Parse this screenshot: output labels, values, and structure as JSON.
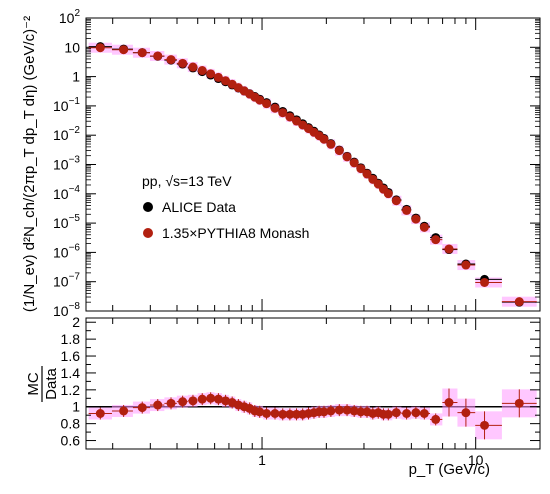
{
  "chart_data": [
    {
      "type": "scatter",
      "scale": {
        "x": "log",
        "y": "log"
      },
      "xlim": [
        0.15,
        20
      ],
      "ylim": [
        1e-08,
        100
      ],
      "ylabel": "(1/N_ev) d²N_ch/(2πp_T dp_T dη) (GeV/c)⁻²",
      "yticks": [
        "10⁻⁸",
        "10⁻⁷",
        "10⁻⁶",
        "10⁻⁵",
        "10⁻⁴",
        "10⁻³",
        "10⁻²",
        "10⁻¹",
        "1",
        "10",
        "10²"
      ],
      "annotation": "pp, √s=13 TeV",
      "legend": [
        {
          "label": "ALICE Data",
          "color": "#000000"
        },
        {
          "label": "1.35×PYTHIA8 Monash",
          "color": "#b22010"
        }
      ],
      "error_band_color": "#ff99ff",
      "x": [
        0.175,
        0.225,
        0.275,
        0.325,
        0.375,
        0.425,
        0.475,
        0.525,
        0.575,
        0.625,
        0.675,
        0.725,
        0.775,
        0.825,
        0.875,
        0.925,
        0.975,
        1.05,
        1.15,
        1.25,
        1.35,
        1.45,
        1.55,
        1.65,
        1.75,
        1.85,
        1.95,
        2.1,
        2.3,
        2.5,
        2.7,
        2.9,
        3.1,
        3.3,
        3.5,
        3.7,
        3.9,
        4.25,
        4.75,
        5.25,
        5.75,
        6.5,
        7.5,
        9.0,
        11.0,
        16.0
      ],
      "series": [
        {
          "name": "ALICE Data",
          "values": [
            10.5,
            8.7,
            6.6,
            4.95,
            3.65,
            2.68,
            1.98,
            1.48,
            1.13,
            0.86,
            0.67,
            0.52,
            0.41,
            0.325,
            0.259,
            0.209,
            0.169,
            0.129,
            0.0906,
            0.0642,
            0.046,
            0.0334,
            0.0245,
            0.0182,
            0.0136,
            0.0102,
            0.00775,
            0.00515,
            0.0031,
            0.0019,
            0.0012,
            0.00077,
            0.000505,
            0.000338,
            0.00023,
            0.000158,
            0.000111,
            6.2e-05,
            2.95e-05,
            1.48e-05,
            7.8e-06,
            3.2e-06,
            1.25e-06,
            4e-07,
            1.2e-07,
            2e-08
          ]
        },
        {
          "name": "1.35×PYTHIA8 Monash",
          "values": [
            9.66,
            8.27,
            6.53,
            5.05,
            3.8,
            2.84,
            2.12,
            1.61,
            1.24,
            0.94,
            0.72,
            0.55,
            0.42,
            0.325,
            0.254,
            0.199,
            0.158,
            0.119,
            0.0833,
            0.0584,
            0.0419,
            0.0304,
            0.0223,
            0.0168,
            0.0126,
            0.0096,
            0.0073,
            0.00489,
            0.00298,
            0.00182,
            0.00114,
            0.000724,
            0.000475,
            0.000311,
            0.000214,
            0.000144,
            0.000101,
            5.8e-05,
            2.71e-05,
            1.37e-05,
            7.15e-06,
            2.72e-06,
            1.31e-06,
            3.7e-07,
            9.4e-08,
            2.08e-08
          ]
        }
      ]
    },
    {
      "type": "scatter",
      "scale": {
        "x": "log",
        "y": "linear"
      },
      "xlim": [
        0.15,
        20
      ],
      "ylim": [
        0.5,
        2.05
      ],
      "xlabel": "p_T (GeV/c)",
      "ylabel": "MC/Data",
      "xticks": [
        "1",
        "10"
      ],
      "yticks": [
        "0.6",
        "0.8",
        "1",
        "1.2",
        "1.4",
        "1.6",
        "1.8",
        "2"
      ],
      "reference_line": 1,
      "x": [
        0.175,
        0.225,
        0.275,
        0.325,
        0.375,
        0.425,
        0.475,
        0.525,
        0.575,
        0.625,
        0.675,
        0.725,
        0.775,
        0.825,
        0.875,
        0.925,
        0.975,
        1.05,
        1.15,
        1.25,
        1.35,
        1.45,
        1.55,
        1.65,
        1.75,
        1.85,
        1.95,
        2.1,
        2.3,
        2.5,
        2.7,
        2.9,
        3.1,
        3.3,
        3.5,
        3.7,
        3.9,
        4.25,
        4.75,
        5.25,
        5.75,
        6.5,
        7.5,
        9.0,
        11.0,
        16.0
      ],
      "series": [
        {
          "name": "1.35×PYTHIA8 Monash",
          "values": [
            0.92,
            0.95,
            0.99,
            1.02,
            1.04,
            1.06,
            1.07,
            1.09,
            1.1,
            1.09,
            1.07,
            1.05,
            1.02,
            1.0,
            0.98,
            0.95,
            0.94,
            0.92,
            0.92,
            0.91,
            0.91,
            0.91,
            0.91,
            0.92,
            0.93,
            0.94,
            0.94,
            0.95,
            0.96,
            0.96,
            0.95,
            0.94,
            0.94,
            0.92,
            0.93,
            0.91,
            0.91,
            0.93,
            0.92,
            0.93,
            0.92,
            0.85,
            1.05,
            0.93,
            0.78,
            1.04
          ]
        }
      ]
    }
  ]
}
